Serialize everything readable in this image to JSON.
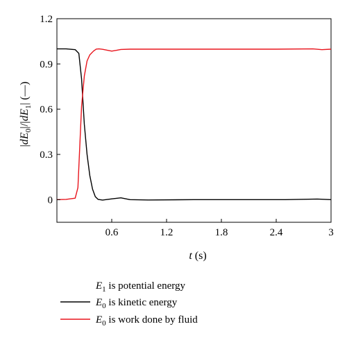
{
  "chart_data": {
    "type": "line",
    "ylabel": "|dE0|/|dE1| (—)",
    "ylabel_parts": {
      "open": "|",
      "d": "d",
      "E": "E",
      "sub0": "0",
      "mid": "|/|",
      "sub1": "1",
      "close": "| (—)"
    },
    "xlabel": "t (s)",
    "xlabel_parts": {
      "var": "t",
      "unit": " (s)"
    },
    "xlim": [
      0,
      3
    ],
    "ylim": [
      -0.15,
      1.2
    ],
    "xticks": [
      0.6,
      1.2,
      1.8,
      2.4,
      3
    ],
    "xtick_labels": [
      "0.6",
      "1.2",
      "1.8",
      "2.4",
      "3"
    ],
    "yticks": [
      0,
      0.3,
      0.6,
      0.9,
      1.2
    ],
    "ytick_labels": [
      "0",
      "0.3",
      "0.6",
      "0.9",
      "1.2"
    ],
    "grid": false,
    "legend_placement": "below",
    "legend": [
      {
        "var": "E",
        "sub": "1",
        "text": " is potential energy",
        "color": "",
        "series": null
      },
      {
        "var": "E",
        "sub": "0",
        "text": " is kinetic energy",
        "color": "#000000",
        "series": 0
      },
      {
        "var": "E",
        "sub": "0",
        "text": " is work done by fluid",
        "color": "#e8141c",
        "series": 1
      }
    ],
    "series": [
      {
        "color": "#000000",
        "x": [
          0,
          0.1,
          0.2,
          0.24,
          0.27,
          0.3,
          0.33,
          0.36,
          0.39,
          0.42,
          0.45,
          0.5,
          0.6,
          0.7,
          0.8,
          1.0,
          1.5,
          2.0,
          2.5,
          2.85,
          3.0
        ],
        "y": [
          1.0,
          1.0,
          0.995,
          0.97,
          0.8,
          0.5,
          0.3,
          0.16,
          0.07,
          0.02,
          0.002,
          -0.003,
          0.005,
          0.012,
          0.0,
          -0.002,
          0.0,
          0.0,
          0.0,
          0.004,
          0.0
        ]
      },
      {
        "color": "#e8141c",
        "x": [
          0,
          0.1,
          0.2,
          0.23,
          0.25,
          0.27,
          0.3,
          0.33,
          0.36,
          0.4,
          0.43,
          0.46,
          0.5,
          0.6,
          0.65,
          0.7,
          0.8,
          1.0,
          1.5,
          2.0,
          2.4,
          2.8,
          2.9,
          3.0
        ],
        "y": [
          0.0,
          0.002,
          0.01,
          0.08,
          0.35,
          0.62,
          0.82,
          0.92,
          0.96,
          0.985,
          0.998,
          1.0,
          0.997,
          0.985,
          0.99,
          0.996,
          0.998,
          0.998,
          0.998,
          0.998,
          0.998,
          1.0,
          0.995,
          0.998
        ]
      }
    ]
  }
}
